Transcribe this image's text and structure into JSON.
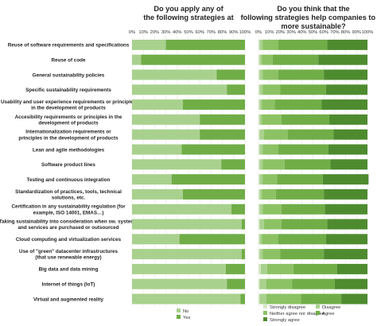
{
  "chart_data": [
    {
      "type": "bar",
      "stacked": true,
      "orientation": "horizontal",
      "title": "Do you apply any of the following strategies at work?",
      "xlim": [
        0,
        100
      ],
      "x_unit": "%",
      "tick_labels": [
        "0%",
        "10%",
        "20%",
        "30%",
        "40%",
        "50%",
        "60%",
        "70%",
        "80%",
        "90%",
        "100%"
      ],
      "categories": [
        "Reuse of software requirements and specifications",
        "Reuse of code",
        "General sustainability policies",
        "Specific sustainability requirements",
        "Usability and user experience requirements or principles in the development of products",
        "Accesibility requirements or principles in the development of products",
        "Internationalization requirements or principles in the development of products",
        "Lean and agile methodologies",
        "Software product lines",
        "Testing and continuous integration",
        "Standardization of practices, tools, technical solutions, etc.",
        "Certification in any sustainability regulation (for example, ISO 14001, EMAS…)",
        "Taking sustainability into consideration when sw. systems and services are purchased or outsourced",
        "Cloud computing and virtualization services",
        "Use of \"green\" datacenter infrastructures (that use renewable energy)",
        "Big data and data mining",
        "Internet of things (IoT)",
        "Virtual and augmented reality"
      ],
      "series": [
        {
          "name": "No",
          "color": "#a9d18e",
          "values": [
            30,
            8,
            75,
            84,
            45,
            60,
            60,
            44,
            79,
            35,
            45,
            88,
            97,
            42,
            97,
            83,
            84,
            96
          ]
        },
        {
          "name": "Yes",
          "color": "#70ad47",
          "values": [
            70,
            92,
            25,
            16,
            55,
            40,
            40,
            56,
            21,
            65,
            55,
            12,
            3,
            58,
            3,
            17,
            16,
            4
          ]
        }
      ],
      "legend": {
        "placement": "bottom-center",
        "labels": [
          "No",
          "Yes"
        ]
      }
    },
    {
      "type": "bar",
      "stacked": true,
      "orientation": "horizontal",
      "title": "Do you think that the following strategies help companies to be more sustainable?",
      "xlim": [
        0,
        100
      ],
      "x_unit": "%",
      "tick_labels": [
        "0%",
        "10%",
        "20%",
        "30%",
        "40%",
        "50%",
        "60%",
        "70%",
        "80%",
        "90%",
        "100%"
      ],
      "series": [
        {
          "name": "Strongly disagree",
          "color": "#d6e9c6",
          "values": [
            1,
            1,
            1,
            1,
            1,
            1,
            1,
            1,
            1,
            1,
            1,
            1,
            1,
            1,
            1,
            2,
            1,
            1
          ]
        },
        {
          "name": "Disagree",
          "color": "#a9d18e",
          "values": [
            3,
            2,
            3,
            3,
            2,
            2,
            4,
            3,
            3,
            3,
            2,
            3,
            4,
            2,
            3,
            6,
            6,
            6
          ]
        },
        {
          "name": "Neither agree nor disagree",
          "color": "#8cc264",
          "values": [
            14,
            10,
            14,
            16,
            12,
            18,
            22,
            14,
            20,
            13,
            13,
            17,
            16,
            15,
            16,
            24,
            24,
            32
          ]
        },
        {
          "name": "Agree",
          "color": "#70ad47",
          "values": [
            45,
            42,
            42,
            42,
            43,
            44,
            42,
            46,
            42,
            42,
            44,
            40,
            42,
            44,
            40,
            40,
            39,
            37
          ]
        },
        {
          "name": "Strongly agree",
          "color": "#4e8b2f",
          "values": [
            37,
            45,
            40,
            38,
            42,
            35,
            31,
            36,
            34,
            42,
            40,
            39,
            37,
            38,
            40,
            28,
            30,
            24
          ]
        }
      ],
      "legend": {
        "placement": "bottom-center",
        "labels": [
          "Strongly disagree",
          "Disagree",
          "Neither agree nor disagree",
          "Agree",
          "Strongly agree"
        ]
      }
    }
  ]
}
